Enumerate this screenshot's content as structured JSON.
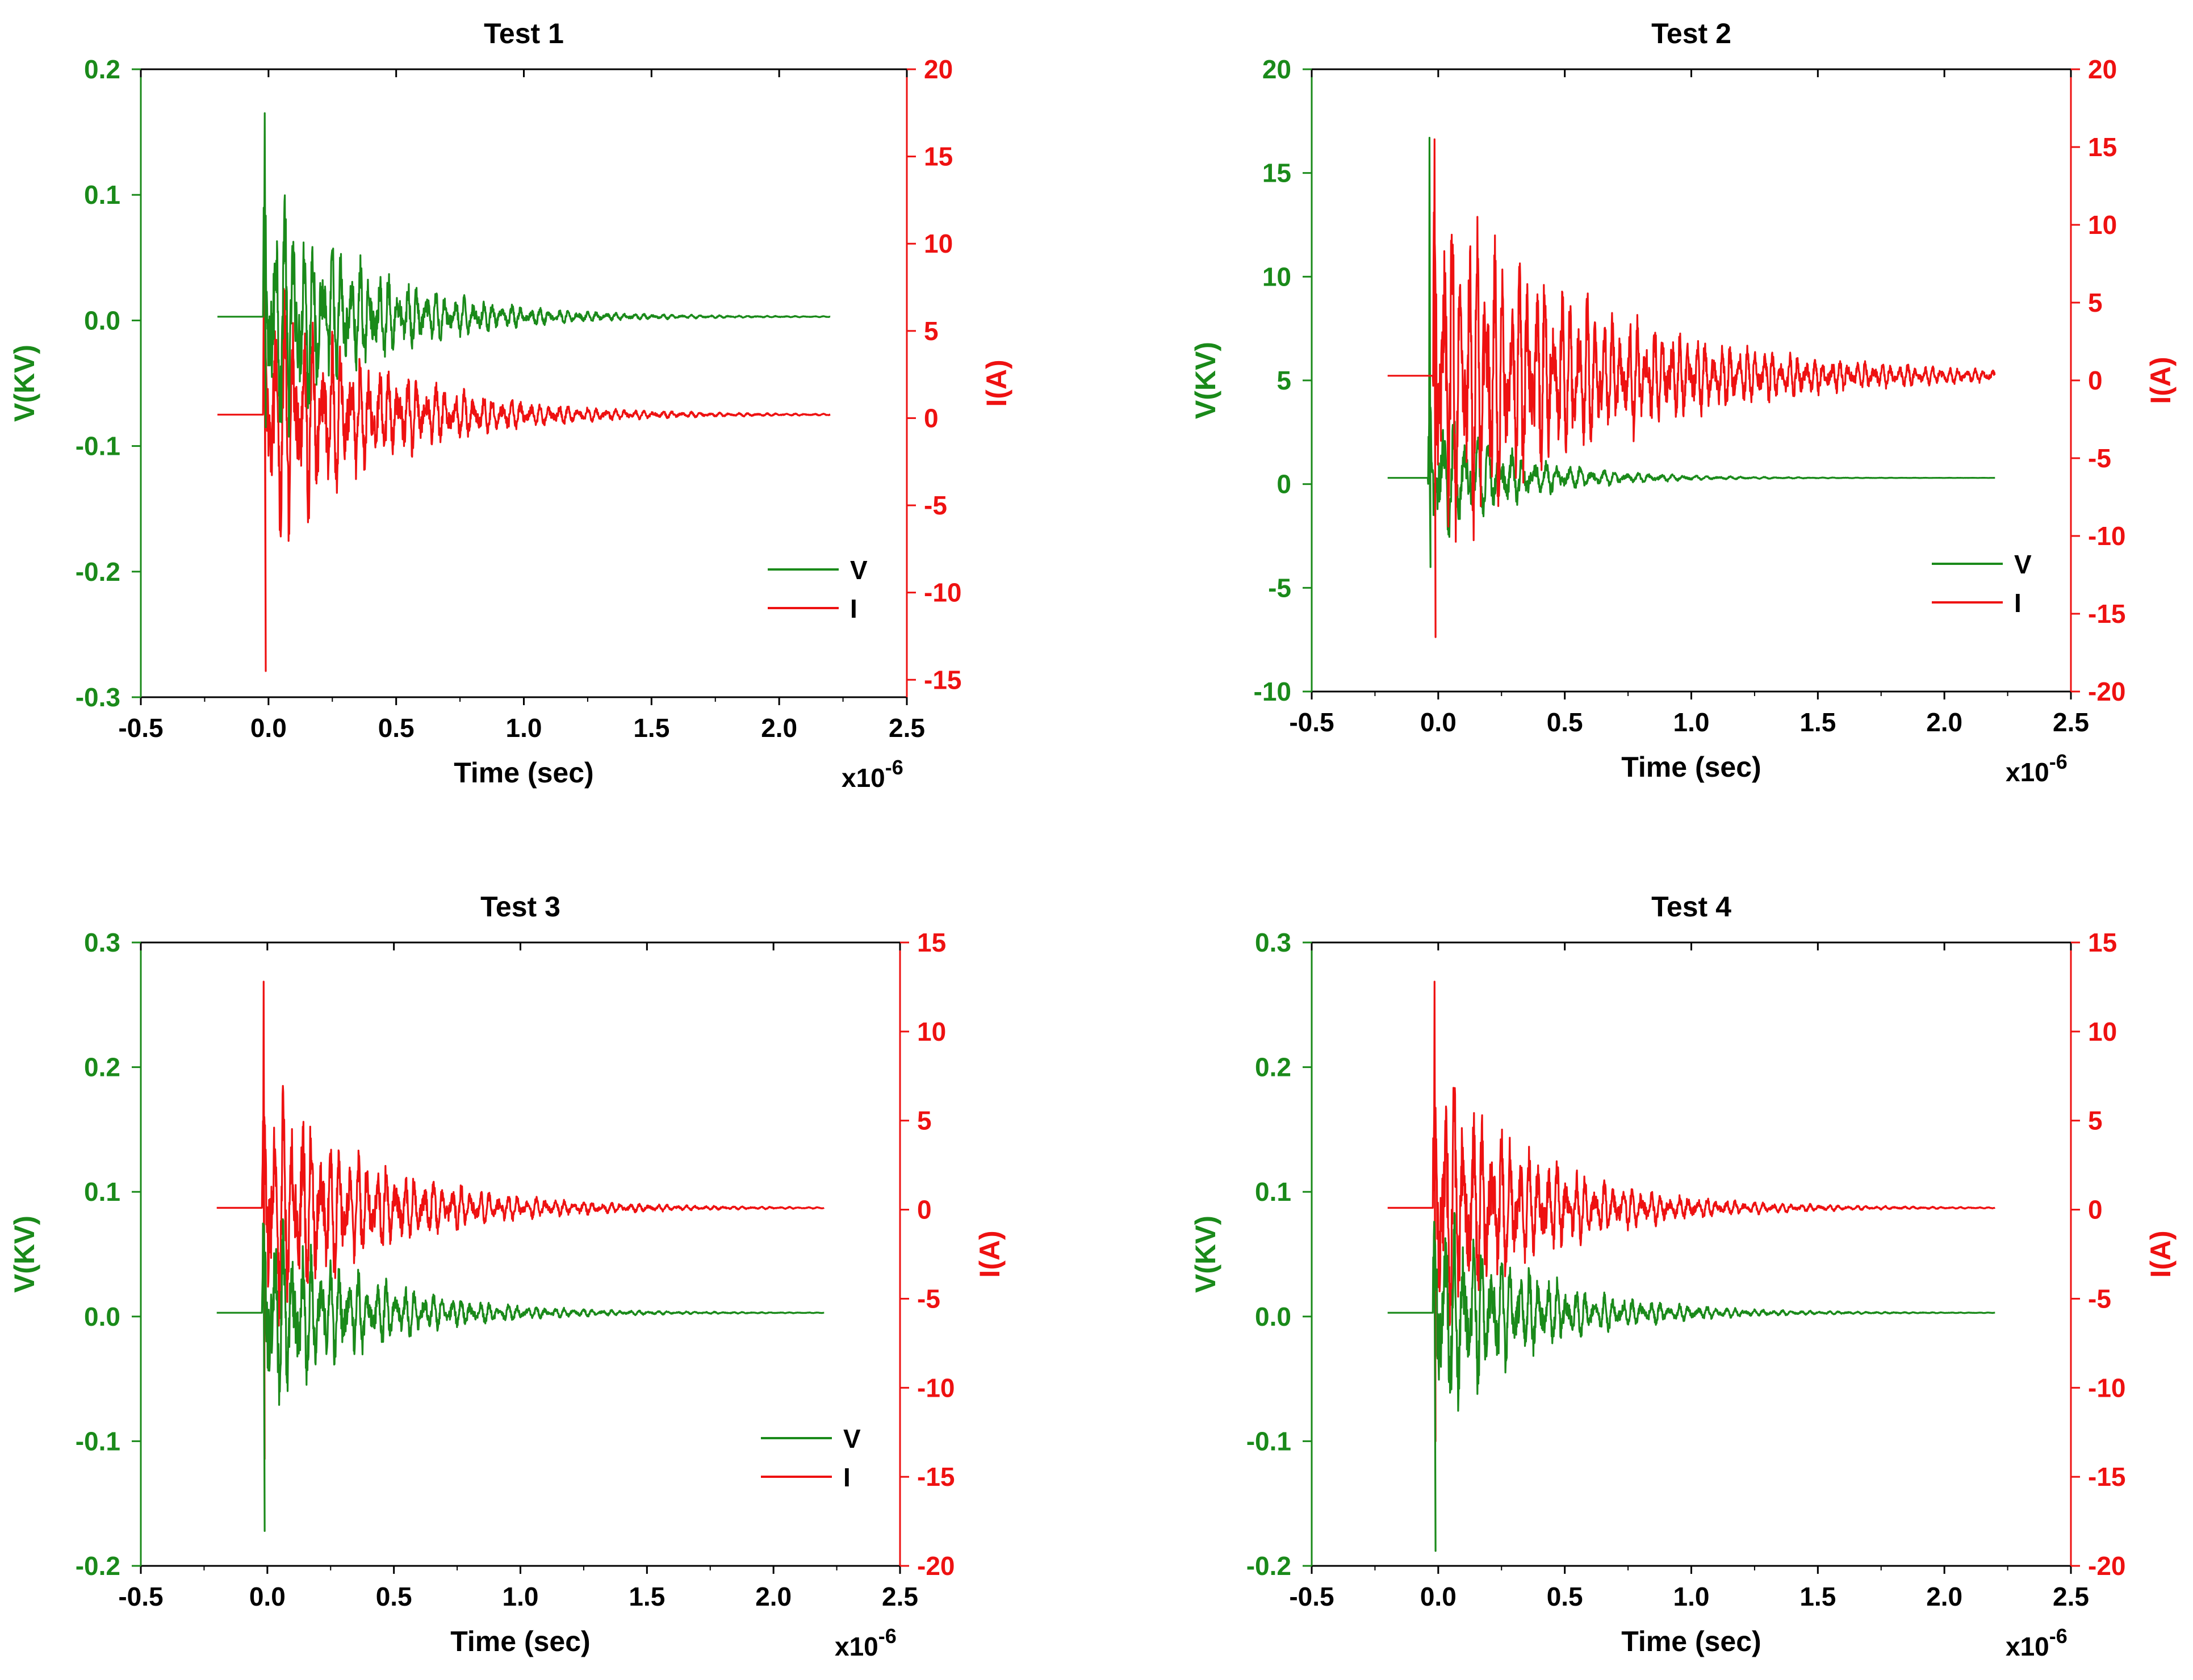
{
  "colors": {
    "voltage": "#1a8a1a",
    "current": "#ee1111",
    "axis": "#000000",
    "background": "#ffffff"
  },
  "chart_data": [
    {
      "type": "line",
      "title": "Test 1",
      "xlabel": "Time (sec)",
      "x_multiplier": "x10",
      "x_exponent": "-6",
      "xlim": [
        -0.5,
        2.5
      ],
      "xticks": [
        -0.5,
        0.0,
        0.5,
        1.0,
        1.5,
        2.0,
        2.5
      ],
      "xtick_labels": [
        "-0.5",
        "0.0",
        "0.5",
        "1.0",
        "1.5",
        "2.0",
        "2.5"
      ],
      "ylabel_left": "V(KV)",
      "ylim_left": [
        -0.3,
        0.2
      ],
      "yticks_left": [
        -0.3,
        -0.2,
        -0.1,
        0.0,
        0.1,
        0.2
      ],
      "ytick_labels_left": [
        "-0.3",
        "-0.2",
        "-0.1",
        "0.0",
        "0.1",
        "0.2"
      ],
      "ylabel_right": "I(A)",
      "ylim_right": [
        -16,
        20
      ],
      "yticks_right": [
        -15,
        -10,
        -5,
        0,
        5,
        10,
        15,
        20
      ],
      "ytick_labels_right": [
        "-15",
        "-10",
        "-5",
        "0",
        "5",
        "10",
        "15",
        "20"
      ],
      "legend_position": "lower-right",
      "series": [
        {
          "name": "V",
          "axis": "left",
          "baseline": 0.003,
          "amplitude": 0.115,
          "t_start": -0.2,
          "t_onset": -0.02,
          "t_end": 2.2,
          "decay": 0.38,
          "freq": 27,
          "spike_min": -0.085,
          "spike_max": 0.165
        },
        {
          "name": "I",
          "axis": "right",
          "baseline": 0.2,
          "amplitude": 8.5,
          "t_start": -0.2,
          "t_onset": -0.02,
          "t_end": 2.2,
          "decay": 0.42,
          "freq": 27,
          "spike_min": -14.5,
          "spike_max": 11.5
        }
      ]
    },
    {
      "type": "line",
      "title": "Test 2",
      "xlabel": "Time (sec)",
      "x_multiplier": "x10",
      "x_exponent": "-6",
      "xlim": [
        -0.5,
        2.5
      ],
      "xticks": [
        -0.5,
        0.0,
        0.5,
        1.0,
        1.5,
        2.0,
        2.5
      ],
      "xtick_labels": [
        "-0.5",
        "0.0",
        "0.5",
        "1.0",
        "1.5",
        "2.0",
        "2.5"
      ],
      "ylabel_left": "V(KV)",
      "ylim_left": [
        -10,
        20
      ],
      "yticks_left": [
        -10,
        -5,
        0,
        5,
        10,
        15,
        20
      ],
      "ytick_labels_left": [
        "-10",
        "-5",
        "0",
        "5",
        "10",
        "15",
        "20"
      ],
      "ylabel_right": "I(A)",
      "ylim_right": [
        -20,
        20
      ],
      "yticks_right": [
        -20,
        -15,
        -10,
        -5,
        0,
        5,
        10,
        15,
        20
      ],
      "ytick_labels_right": [
        "-20",
        "-15",
        "-10",
        "-5",
        "0",
        "5",
        "10",
        "15",
        "20"
      ],
      "legend_position": "lower-right",
      "series": [
        {
          "name": "V",
          "axis": "left",
          "baseline": 0.3,
          "amplitude": 3.8,
          "t_start": -0.2,
          "t_onset": -0.04,
          "t_end": 2.2,
          "decay": 0.3,
          "freq": 22,
          "spike_min": -4.0,
          "spike_max": 16.7
        },
        {
          "name": "I",
          "axis": "right",
          "baseline": 0.3,
          "amplitude": 12.0,
          "t_start": -0.2,
          "t_onset": -0.02,
          "t_end": 2.2,
          "decay": 0.65,
          "freq": 30,
          "spike_min": -16.5,
          "spike_max": 15.5
        }
      ]
    },
    {
      "type": "line",
      "title": "Test 3",
      "xlabel": "Time (sec)",
      "x_multiplier": "x10",
      "x_exponent": "-6",
      "xlim": [
        -0.5,
        2.5
      ],
      "xticks": [
        -0.5,
        0.0,
        0.5,
        1.0,
        1.5,
        2.0,
        2.5
      ],
      "xtick_labels": [
        "-0.5",
        "0.0",
        "0.5",
        "1.0",
        "1.5",
        "2.0",
        "2.5"
      ],
      "ylabel_left": "V(KV)",
      "ylim_left": [
        -0.2,
        0.3
      ],
      "yticks_left": [
        -0.2,
        -0.1,
        0.0,
        0.1,
        0.2,
        0.3
      ],
      "ytick_labels_left": [
        "-0.2",
        "-0.1",
        "0.0",
        "0.1",
        "0.2",
        "0.3"
      ],
      "ylabel_right": "I(A)",
      "ylim_right": [
        -20,
        15
      ],
      "yticks_right": [
        -20,
        -15,
        -10,
        -5,
        0,
        5,
        10,
        15
      ],
      "ytick_labels_right": [
        "-20",
        "-15",
        "-10",
        "-5",
        "0",
        "5",
        "10",
        "15"
      ],
      "legend_position": "lower-right",
      "series": [
        {
          "name": "V",
          "axis": "left",
          "baseline": 0.003,
          "amplitude": 0.085,
          "t_start": -0.2,
          "t_onset": -0.02,
          "t_end": 2.2,
          "decay": 0.38,
          "freq": 27,
          "spike_min": -0.172,
          "spike_max": 0.06
        },
        {
          "name": "I",
          "axis": "right",
          "baseline": 0.1,
          "amplitude": 7.5,
          "t_start": -0.2,
          "t_onset": -0.02,
          "t_end": 2.2,
          "decay": 0.42,
          "freq": 27,
          "spike_min": -14.0,
          "spike_max": 12.8
        }
      ]
    },
    {
      "type": "line",
      "title": "Test 4",
      "xlabel": "Time (sec)",
      "x_multiplier": "x10",
      "x_exponent": "-6",
      "xlim": [
        -0.5,
        2.5
      ],
      "xticks": [
        -0.5,
        0.0,
        0.5,
        1.0,
        1.5,
        2.0,
        2.5
      ],
      "xtick_labels": [
        "-0.5",
        "0.0",
        "0.5",
        "1.0",
        "1.5",
        "2.0",
        "2.5"
      ],
      "ylabel_left": "V(KV)",
      "ylim_left": [
        -0.2,
        0.3
      ],
      "yticks_left": [
        -0.2,
        -0.1,
        0.0,
        0.1,
        0.2,
        0.3
      ],
      "ytick_labels_left": [
        "-0.2",
        "-0.1",
        "0.0",
        "0.1",
        "0.2",
        "0.3"
      ],
      "ylabel_right": "I(A)",
      "ylim_right": [
        -20,
        15
      ],
      "yticks_right": [
        -20,
        -15,
        -10,
        -5,
        0,
        5,
        10,
        15
      ],
      "ytick_labels_right": [
        "-20",
        "-15",
        "-10",
        "-5",
        "0",
        "5",
        "10",
        "15"
      ],
      "legend_position": "none",
      "series": [
        {
          "name": "V",
          "axis": "left",
          "baseline": 0.003,
          "amplitude": 0.095,
          "t_start": -0.2,
          "t_onset": -0.02,
          "t_end": 2.2,
          "decay": 0.36,
          "freq": 27,
          "spike_min": -0.188,
          "spike_max": 0.07
        },
        {
          "name": "I",
          "axis": "right",
          "baseline": 0.1,
          "amplitude": 8.0,
          "t_start": -0.2,
          "t_onset": -0.02,
          "t_end": 2.2,
          "decay": 0.4,
          "freq": 27,
          "spike_min": -13.0,
          "spike_max": 12.8
        }
      ]
    }
  ]
}
